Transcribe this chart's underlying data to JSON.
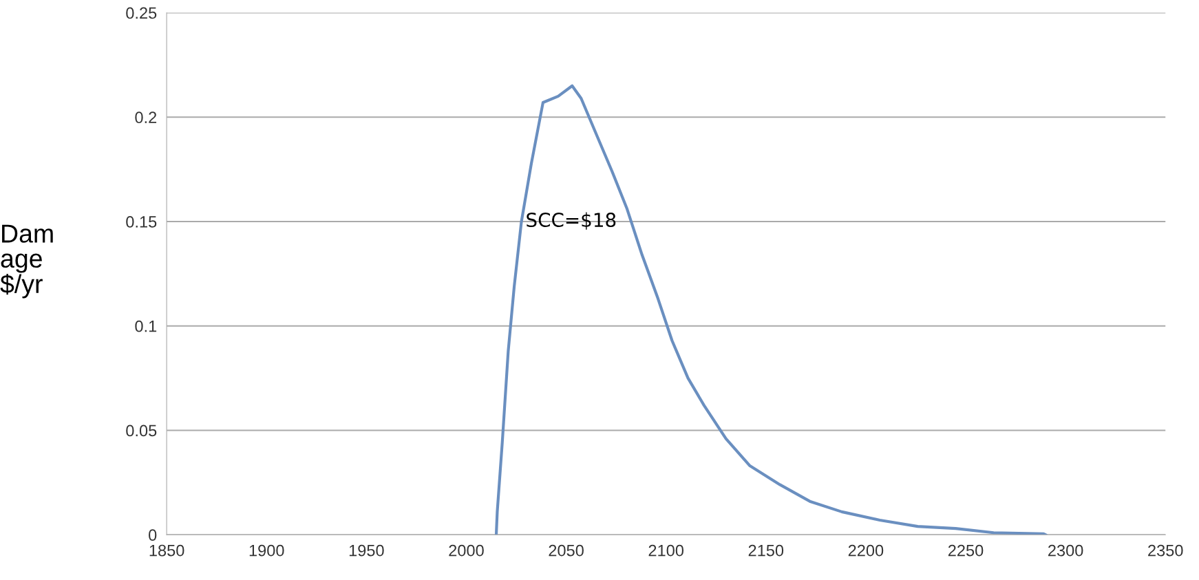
{
  "chart_data": {
    "type": "line",
    "ylabel": "Dam\nage\n$/yr",
    "x": [
      2015,
      2015.5,
      2018,
      2021,
      2024,
      2027.6,
      2032.6,
      2038.4,
      2046,
      2053,
      2057.5,
      2065,
      2073,
      2080.5,
      2088,
      2096,
      2103,
      2111,
      2119,
      2130,
      2142,
      2157,
      2172,
      2188,
      2207,
      2226,
      2245,
      2264,
      2289,
      2290
    ],
    "series": [
      {
        "color": "#6a8fc0",
        "values": [
          0,
          0.011,
          0.044,
          0.088,
          0.119,
          0.15,
          0.178,
          0.207,
          0.21,
          0.215,
          0.209,
          0.192,
          0.174,
          0.156,
          0.134,
          0.113,
          0.093,
          0.075,
          0.062,
          0.046,
          0.033,
          0.024,
          0.016,
          0.011,
          0.007,
          0.004,
          0.003,
          0.001,
          0.0005,
          0
        ]
      }
    ],
    "xlim": [
      1850,
      2350
    ],
    "xticks": [
      1850,
      1900,
      1950,
      2000,
      2050,
      2100,
      2150,
      2200,
      2250,
      2300,
      2350
    ],
    "ylim": [
      0,
      0.25
    ],
    "yticks": [
      0,
      0.05,
      0.1,
      0.15,
      0.2,
      0.25
    ],
    "grid": "y",
    "legend": false,
    "marker": "none",
    "line_style": "solid",
    "annotations": [
      "SCC=$18"
    ]
  }
}
